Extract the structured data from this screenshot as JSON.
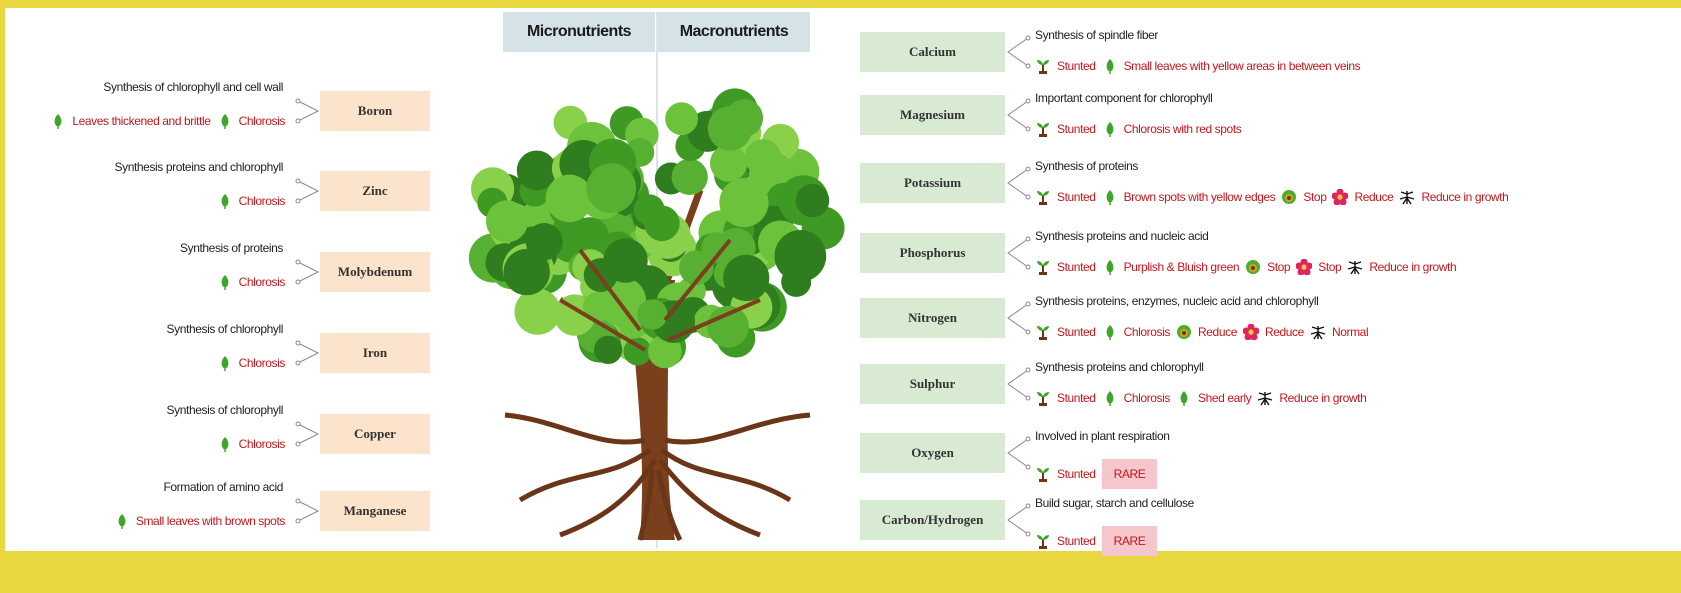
{
  "header": {
    "micro_title": "Micronutrients",
    "macro_title": "Macronutrients"
  },
  "micronutrients": [
    {
      "name": "Boron",
      "function": "Synthesis of chlorophyll and cell wall",
      "effects": [
        {
          "icon": "leaf",
          "text": "Leaves thickened and brittle"
        },
        {
          "icon": "leaf",
          "text": "Chlorosis"
        }
      ]
    },
    {
      "name": "Zinc",
      "function": "Synthesis proteins and chlorophyll",
      "effects": [
        {
          "icon": "leaf",
          "text": "Chlorosis"
        }
      ]
    },
    {
      "name": "Molybdenum",
      "function": "Synthesis of proteins",
      "effects": [
        {
          "icon": "leaf",
          "text": "Chlorosis"
        }
      ]
    },
    {
      "name": "Iron",
      "function": "Synthesis of chlorophyll",
      "effects": [
        {
          "icon": "leaf",
          "text": "Chlorosis"
        }
      ]
    },
    {
      "name": "Copper",
      "function": "Synthesis of chlorophyll",
      "effects": [
        {
          "icon": "leaf",
          "text": "Chlorosis"
        }
      ]
    },
    {
      "name": "Manganese",
      "function": "Formation of amino acid",
      "effects": [
        {
          "icon": "leaf",
          "text": "Small leaves with brown spots"
        }
      ]
    }
  ],
  "macronutrients": [
    {
      "name": "Calcium",
      "function": "Synthesis of spindle fiber",
      "effects": [
        {
          "icon": "stem",
          "text": "Stunted"
        },
        {
          "icon": "leaf",
          "text": "Small leaves with yellow areas in between veins"
        }
      ]
    },
    {
      "name": "Magnesium",
      "function": "Important component for chlorophyll",
      "effects": [
        {
          "icon": "stem",
          "text": "Stunted"
        },
        {
          "icon": "leaf",
          "text": "Chlorosis with red spots"
        }
      ]
    },
    {
      "name": "Potassium",
      "function": "Synthesis of proteins",
      "effects": [
        {
          "icon": "stem",
          "text": "Stunted"
        },
        {
          "icon": "leaf",
          "text": "Brown spots with yellow edges"
        },
        {
          "icon": "fruit",
          "text": "Stop"
        },
        {
          "icon": "flower",
          "text": "Reduce"
        },
        {
          "icon": "root",
          "text": "Reduce in growth"
        }
      ]
    },
    {
      "name": "Phosphorus",
      "function": "Synthesis proteins and nucleic acid",
      "effects": [
        {
          "icon": "stem",
          "text": "Stunted"
        },
        {
          "icon": "leaf",
          "text": "Purplish & Bluish green"
        },
        {
          "icon": "fruit",
          "text": "Stop"
        },
        {
          "icon": "flower",
          "text": "Stop"
        },
        {
          "icon": "root",
          "text": "Reduce in growth"
        }
      ]
    },
    {
      "name": "Nitrogen",
      "function": "Synthesis proteins, enzymes, nucleic acid and chlorophyll",
      "effects": [
        {
          "icon": "stem",
          "text": "Stunted"
        },
        {
          "icon": "leaf",
          "text": "Chlorosis"
        },
        {
          "icon": "fruit",
          "text": "Reduce"
        },
        {
          "icon": "flower",
          "text": "Reduce"
        },
        {
          "icon": "root",
          "text": "Normal"
        }
      ]
    },
    {
      "name": "Sulphur",
      "function": "Synthesis proteins and chlorophyll",
      "effects": [
        {
          "icon": "stem",
          "text": "Stunted"
        },
        {
          "icon": "leaf",
          "text": "Chlorosis"
        },
        {
          "icon": "leaf",
          "text": "Shed early"
        },
        {
          "icon": "root",
          "text": "Reduce in growth"
        }
      ]
    },
    {
      "name": "Oxygen",
      "function": "Involved in plant respiration",
      "effects": [
        {
          "icon": "stem",
          "text": "Stunted"
        },
        {
          "icon": "note",
          "text": "RARE"
        }
      ]
    },
    {
      "name": "Carbon/Hydrogen",
      "function": "Build sugar, starch and cellulose",
      "effects": [
        {
          "icon": "stem",
          "text": "Stunted"
        },
        {
          "icon": "note",
          "text": "RARE"
        }
      ]
    }
  ]
}
